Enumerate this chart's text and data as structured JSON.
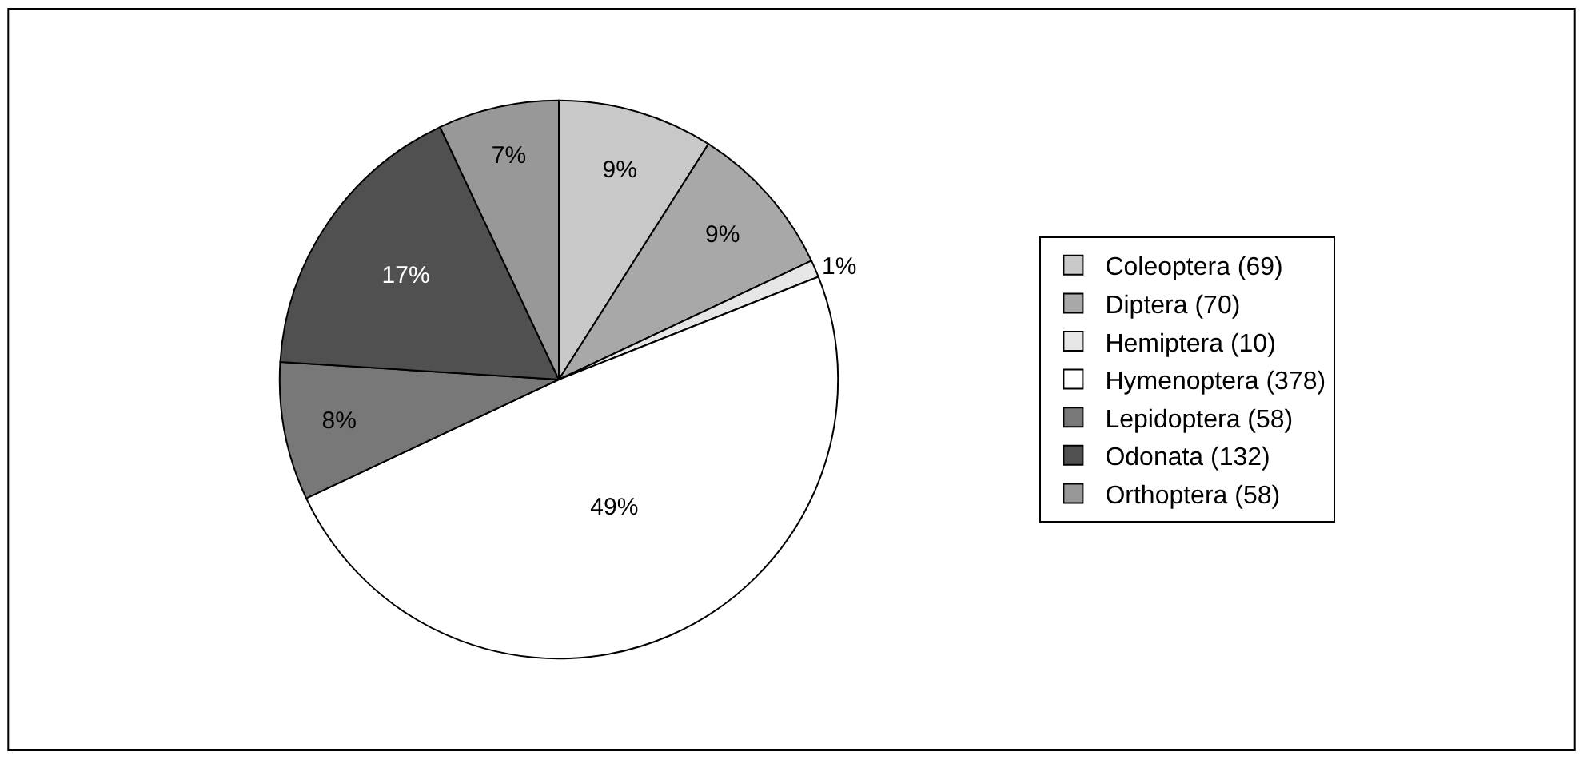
{
  "chart_data": {
    "type": "pie",
    "categories": [
      "Coleoptera (69)",
      "Diptera (70)",
      "Hemiptera (10)",
      "Hymenoptera (378)",
      "Lepidoptera (58)",
      "Odonata (132)",
      "Orthoptera (58)"
    ],
    "values": [
      9,
      9,
      1,
      49,
      8,
      17,
      7
    ],
    "value_labels": [
      "9%",
      "9%",
      "1%",
      "49%",
      "8%",
      "17%",
      "7%"
    ],
    "colors": [
      "#c8c8c8",
      "#a8a8a8",
      "#e6e6e6",
      "#ffffff",
      "#787878",
      "#505050",
      "#989898"
    ],
    "legend": "right"
  }
}
